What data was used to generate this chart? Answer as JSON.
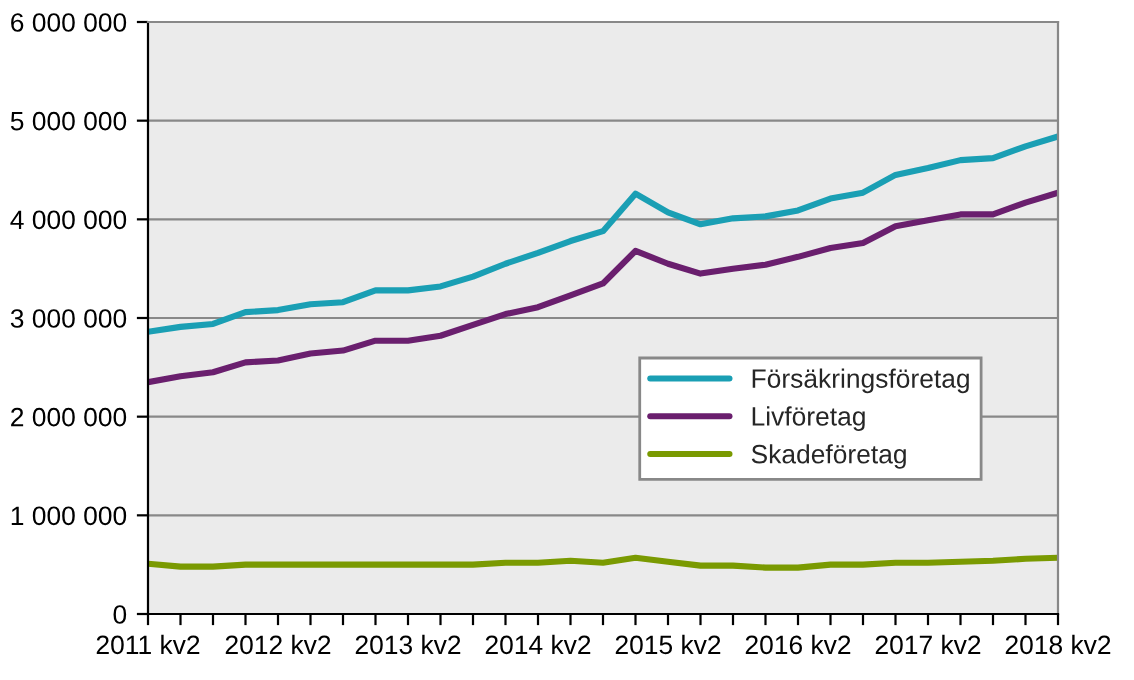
{
  "chart_data": {
    "type": "line",
    "categories": [
      "2011 kv2",
      null,
      null,
      null,
      "2012 kv2",
      null,
      null,
      null,
      "2013 kv2",
      null,
      null,
      null,
      "2014 kv2",
      null,
      null,
      null,
      "2015 kv2",
      null,
      null,
      null,
      "2016 kv2",
      null,
      null,
      null,
      "2017 kv2",
      null,
      null,
      null,
      "2018 kv2"
    ],
    "series": [
      {
        "name": "Försäkringsföretag",
        "color": "#1a9fb4",
        "values": [
          2860000,
          2910000,
          2940000,
          3060000,
          3080000,
          3140000,
          3160000,
          3280000,
          3280000,
          3320000,
          3420000,
          3550000,
          3660000,
          3780000,
          3880000,
          4260000,
          4070000,
          3950000,
          4010000,
          4030000,
          4090000,
          4210000,
          4270000,
          4450000,
          4520000,
          4600000,
          4620000,
          4740000,
          4840000
        ]
      },
      {
        "name": "Livföretag",
        "color": "#6a1f6e",
        "values": [
          2350000,
          2410000,
          2450000,
          2550000,
          2570000,
          2640000,
          2670000,
          2770000,
          2770000,
          2820000,
          2930000,
          3040000,
          3110000,
          3230000,
          3350000,
          3680000,
          3550000,
          3450000,
          3500000,
          3540000,
          3620000,
          3710000,
          3760000,
          3930000,
          3990000,
          4050000,
          4050000,
          4170000,
          4270000
        ]
      },
      {
        "name": "Skadeföretag",
        "color": "#7a9a01",
        "values": [
          510000,
          480000,
          480000,
          500000,
          500000,
          500000,
          500000,
          500000,
          500000,
          500000,
          500000,
          520000,
          520000,
          540000,
          520000,
          570000,
          530000,
          490000,
          490000,
          470000,
          470000,
          500000,
          500000,
          520000,
          520000,
          530000,
          540000,
          560000,
          570000
        ]
      }
    ],
    "ylim": [
      0,
      6000000
    ],
    "yticks": [
      {
        "value": 0,
        "label": "0"
      },
      {
        "value": 1000000,
        "label": "1 000 000"
      },
      {
        "value": 2000000,
        "label": "2 000 000"
      },
      {
        "value": 3000000,
        "label": "3 000 000"
      },
      {
        "value": 4000000,
        "label": "4 000 000"
      },
      {
        "value": 5000000,
        "label": "5 000 000"
      },
      {
        "value": 6000000,
        "label": "6 000 000"
      }
    ],
    "grid": "y",
    "legend": "right",
    "marker": "none",
    "line_style": "solid"
  }
}
